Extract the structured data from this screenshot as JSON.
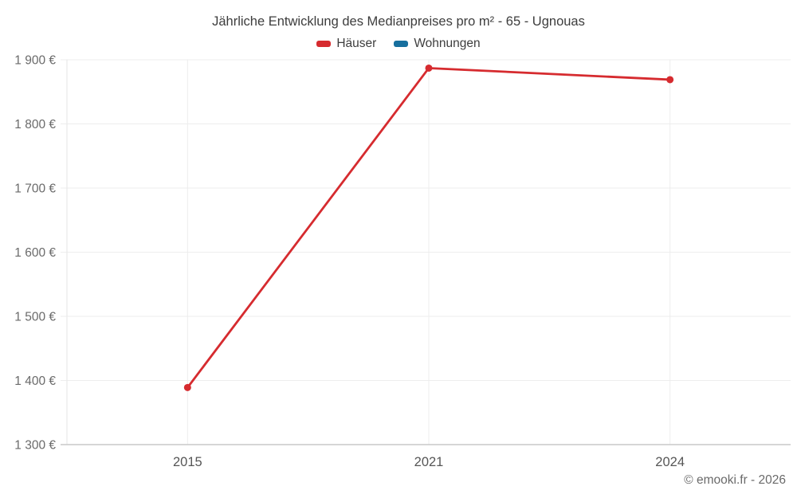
{
  "header": {
    "title": "Jährliche Entwicklung des Medianpreises pro m² - 65 - Ugnouas"
  },
  "legend": {
    "items": [
      {
        "label": "Häuser",
        "color": "#d62b2f"
      },
      {
        "label": "Wohnungen",
        "color": "#176f9e"
      }
    ]
  },
  "chart_data": {
    "type": "line",
    "title": "Jährliche Entwicklung des Medianpreises pro m² - 65 - Ugnouas",
    "categories": [
      "2015",
      "2021",
      "2024"
    ],
    "series": [
      {
        "name": "Häuser",
        "color": "#d62b2f",
        "values": [
          1389,
          1887,
          1869
        ]
      },
      {
        "name": "Wohnungen",
        "color": "#176f9e",
        "values": []
      }
    ],
    "xlabel": "",
    "ylabel": "",
    "ylim": [
      1300,
      1900
    ],
    "yticks": [
      1300,
      1400,
      1500,
      1600,
      1700,
      1800,
      1900
    ],
    "ytick_labels": [
      "1 300 €",
      "1 400 €",
      "1 500 €",
      "1 600 €",
      "1 700 €",
      "1 800 €",
      "1 900 €"
    ],
    "grid": true,
    "legend_position": "top"
  },
  "footer": {
    "credit": "© emooki.fr - 2026"
  },
  "colors": {
    "grid_line": "#ededed",
    "axis_line": "#c9c9c9",
    "left_axis_line": "#e6e6e6",
    "tick_text": "#6a6a6a",
    "xtick_text": "#565656",
    "title_text": "#3d3d3d"
  }
}
